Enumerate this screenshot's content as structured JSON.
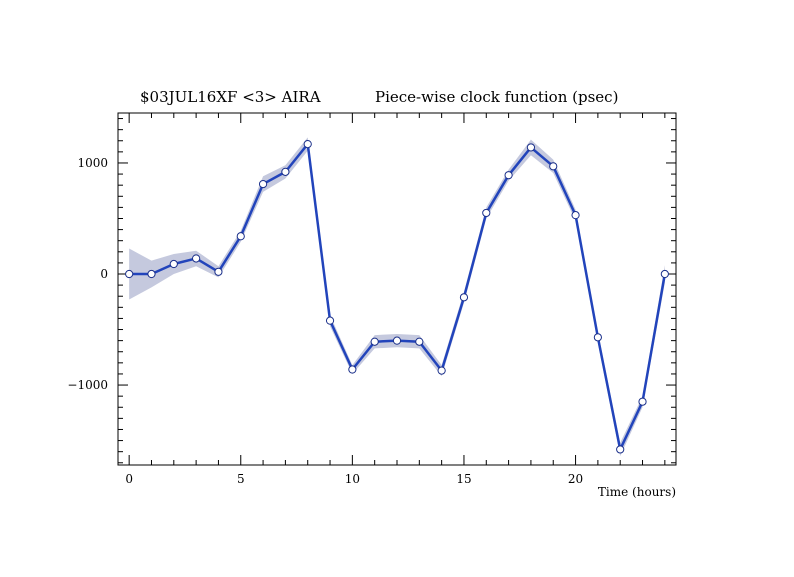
{
  "chart_data": {
    "type": "line",
    "title_left": "$03JUL16XF <3>  AIRA",
    "title_right": "Piece-wise clock function (psec)",
    "xlabel": "Time (hours)",
    "ylabel": "",
    "xlim": [
      -0.5,
      24.5
    ],
    "ylim": [
      -1720,
      1450
    ],
    "x_ticks": [
      0,
      5,
      10,
      15,
      20
    ],
    "y_ticks": [
      -1000,
      0,
      1000
    ],
    "x_minor_step": 1,
    "y_minor_step": 100,
    "grid": false,
    "colors": {
      "line": "#2244bb",
      "band": "#c5c9de",
      "marker_fill": "#ffffff",
      "marker_edge": "#1a2f8a"
    },
    "series": [
      {
        "x": [
          0,
          1,
          2,
          3,
          4,
          5,
          6,
          7,
          8,
          9,
          10,
          11,
          12,
          13,
          14,
          15,
          16,
          17,
          18,
          19,
          20,
          21,
          22,
          23,
          24
        ],
        "y": [
          0,
          0,
          90,
          140,
          20,
          340,
          810,
          920,
          1170,
          -420,
          -860,
          -610,
          -600,
          -610,
          -870,
          -210,
          550,
          890,
          1140,
          970,
          530,
          -570,
          -1580,
          -1150,
          0
        ],
        "err": [
          230,
          120,
          90,
          70,
          50,
          50,
          70,
          60,
          60,
          50,
          40,
          60,
          60,
          60,
          50,
          50,
          50,
          50,
          70,
          60,
          50,
          50,
          60,
          50,
          80
        ]
      }
    ]
  }
}
